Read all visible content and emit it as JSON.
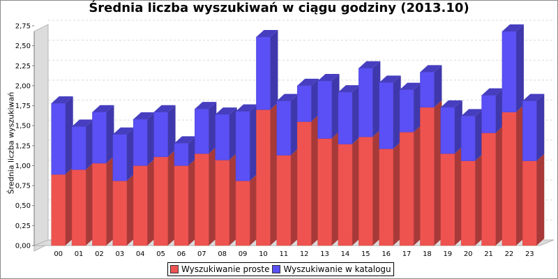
{
  "chart_data": {
    "type": "bar",
    "stacked": true,
    "title": "Średnia liczba wyszukiwań w ciągu godziny (2013.10)",
    "xlabel": "",
    "ylabel": "Średnia liczba wyszukiwań",
    "ylim": [
      0,
      2.75
    ],
    "yticks": [
      "0,00",
      "0,25",
      "0,50",
      "0,75",
      "1,00",
      "1,25",
      "1,50",
      "1,75",
      "2,00",
      "2,25",
      "2,50",
      "2,75"
    ],
    "grid": true,
    "legend_position": "bottom",
    "categories": [
      "00",
      "01",
      "02",
      "03",
      "04",
      "05",
      "06",
      "07",
      "08",
      "09",
      "10",
      "11",
      "12",
      "13",
      "14",
      "15",
      "16",
      "17",
      "18",
      "19",
      "20",
      "21",
      "22",
      "23"
    ],
    "series": [
      {
        "name": "Wyszukiwanie proste",
        "color": "#ef5350",
        "values": [
          0.89,
          0.95,
          1.03,
          0.81,
          1.0,
          1.11,
          1.0,
          1.15,
          1.07,
          0.81,
          1.7,
          1.13,
          1.55,
          1.34,
          1.27,
          1.36,
          1.21,
          1.42,
          1.73,
          1.15,
          1.06,
          1.41,
          1.67,
          1.06
        ]
      },
      {
        "name": "Wyszukiwanie w katalogu",
        "color": "#5a50f5",
        "values": [
          0.89,
          0.54,
          0.64,
          0.58,
          0.58,
          0.56,
          0.28,
          0.56,
          0.57,
          0.87,
          0.91,
          0.68,
          0.45,
          0.72,
          0.65,
          0.86,
          0.83,
          0.53,
          0.44,
          0.58,
          0.56,
          0.47,
          1.01,
          0.75
        ]
      }
    ]
  }
}
